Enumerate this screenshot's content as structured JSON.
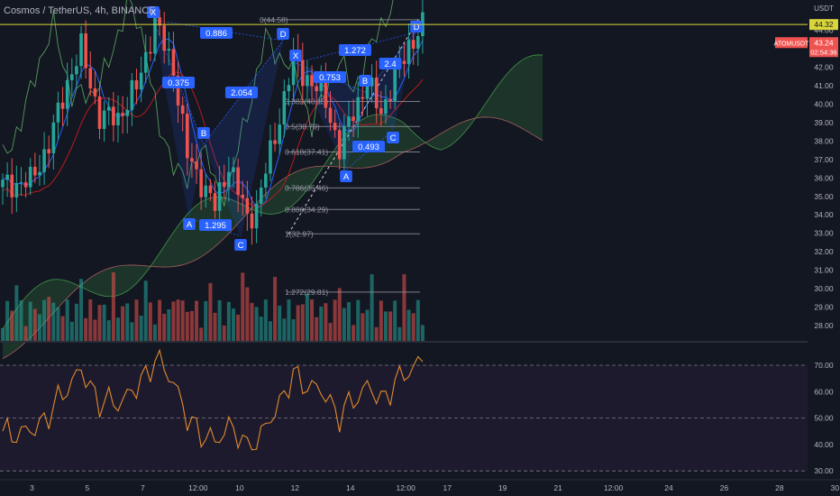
{
  "header": {
    "title": "Cosmos / TetherUS, 4h, BINANCE"
  },
  "chart_data": {
    "type": "candlestick",
    "price_axis": {
      "unit": "USDT",
      "ticks": [
        "44.00",
        "43.00",
        "42.00",
        "41.00",
        "40.00",
        "39.00",
        "38.00",
        "37.00",
        "36.00",
        "35.00",
        "34.00",
        "33.00",
        "32.00",
        "31.00",
        "30.00",
        "29.00",
        "28.00"
      ],
      "range": [
        27.4,
        45.2
      ],
      "current_price": "43.24",
      "countdown": "02:54:36",
      "symbol_tag": "ATOMUSDT",
      "high_line": "44.32"
    },
    "time_axis": {
      "ticks": [
        "3",
        "5",
        "7",
        "12:00",
        "10",
        "12",
        "14",
        "12:00",
        "17",
        "19",
        "21",
        "12:00",
        "24",
        "26",
        "28",
        "30"
      ],
      "tick_index": [
        4,
        16,
        28,
        40,
        49,
        61,
        73,
        85,
        94,
        106,
        118,
        130,
        142,
        154,
        166,
        178
      ]
    },
    "rsi": {
      "ticks": [
        "70.00",
        "60.00",
        "50.00",
        "40.00",
        "30.00"
      ],
      "range": [
        28,
        77
      ],
      "upper": 70,
      "lower": 30,
      "mid": 50
    },
    "fib_levels": [
      {
        "label": "0(44.58)",
        "value": 44.58
      },
      {
        "label": "0.382(40.15)",
        "value": 40.15
      },
      {
        "label": "0.5(38.79)",
        "value": 38.79
      },
      {
        "label": "0.618(37.41)",
        "value": 37.41
      },
      {
        "label": "0.786(35.46)",
        "value": 35.46
      },
      {
        "label": "0.886(34.29)",
        "value": 34.29
      },
      {
        "label": "1(32.97)",
        "value": 32.97
      },
      {
        "label": "1.272(29.81)",
        "value": 29.81
      }
    ],
    "harmonic_labels": {
      "points": [
        "X",
        "A",
        "B",
        "C",
        "D"
      ],
      "ratios": [
        "0.886",
        "0.375",
        "2.054",
        "1.295",
        "1.272",
        "0.753",
        "0.493",
        "2.4"
      ]
    },
    "colors": {
      "up": "#26a69a",
      "down": "#ef5350",
      "cloud_bull": "#1f3a2c",
      "cloud_bear": "#3d2027",
      "rsi_line": "#e08a2c",
      "pattern": "#2962ff",
      "high_line": "#d9d53a"
    }
  }
}
